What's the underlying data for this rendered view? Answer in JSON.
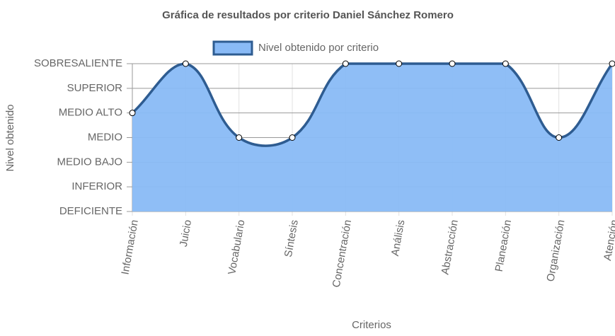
{
  "chart_data": {
    "type": "area",
    "title": "Gráfica de resultados por criterio Daniel Sánchez Romero",
    "x_label": "Criterios",
    "y_label": "Nivel obtenido",
    "categories": [
      "Información",
      "Juicio",
      "Vocabulario",
      "Síntesis",
      "Concentración",
      "Análisis",
      "Abstracción",
      "Planeación",
      "Organización",
      "Atención"
    ],
    "series": [
      {
        "name": "Nivel obtenido por criterio",
        "color": "#2e5c91",
        "fill_color": "#89baf6",
        "values": [
          4,
          6,
          3,
          3,
          6,
          6,
          6,
          6,
          3,
          6
        ]
      }
    ],
    "ylim": [
      0,
      6
    ],
    "yticks": [
      {
        "value": 0,
        "label": "DEFICIENTE"
      },
      {
        "value": 1,
        "label": "INFERIOR"
      },
      {
        "value": 2,
        "label": "MEDIO BAJO"
      },
      {
        "value": 3,
        "label": "MEDIO"
      },
      {
        "value": 4,
        "label": "MEDIO ALTO"
      },
      {
        "value": 5,
        "label": "SUPERIOR"
      },
      {
        "value": 6,
        "label": "SOBRESALIENTE"
      }
    ],
    "grid": true
  }
}
